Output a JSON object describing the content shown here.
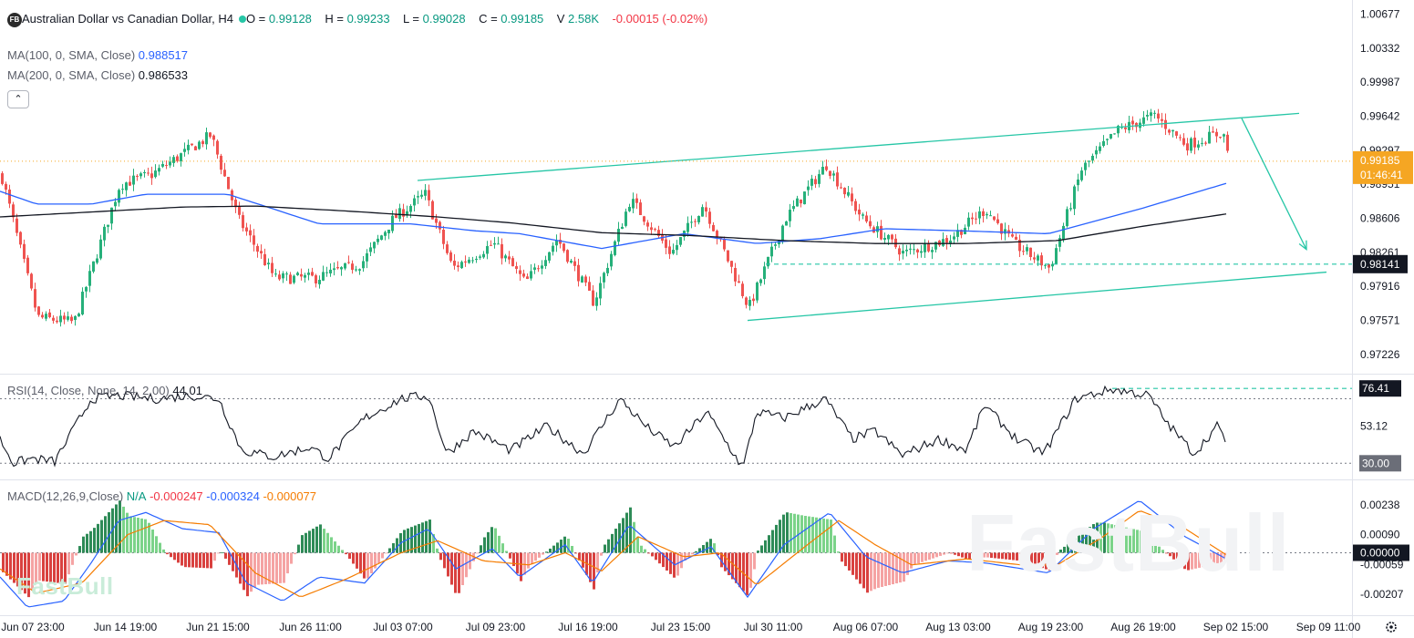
{
  "header": {
    "logo_text": "FB",
    "title": "Australian Dollar vs Canadian Dollar, H4",
    "open_label": "O =",
    "open": "0.99128",
    "high_label": "H =",
    "high": "0.99233",
    "low_label": "L =",
    "low": "0.99028",
    "close_label": "C =",
    "close": "0.99185",
    "volume_label": "V",
    "volume": "2.58K",
    "change": "-0.00015 (-0.02%)"
  },
  "indicators": {
    "ma100_label": "MA(100, 0, SMA, Close)",
    "ma100_value": "0.988517",
    "ma200_label": "MA(200, 0, SMA, Close)",
    "ma200_value": "0.986533",
    "collapse_icon": "chevron-up-icon",
    "rsi_label": "RSI(14, Close, None, 14, 2.00)",
    "rsi_value": "44.01",
    "macd_label": "MACD(12,26,9,Close)",
    "macd_na": "N/A",
    "macd_hist": "-0.000247",
    "macd_line": "-0.000324",
    "macd_signal": "-0.000077"
  },
  "watermark": {
    "text": "FastBull"
  },
  "chart_data": {
    "type": "candlestick",
    "price_axis": {
      "ticks": [
        "1.00677",
        "1.00332",
        "0.99987",
        "0.99642",
        "0.99297",
        "0.98951",
        "0.98606",
        "0.98261",
        "0.97916",
        "0.97571",
        "0.97226"
      ],
      "ylim": [
        0.9703,
        1.0082
      ]
    },
    "rsi_axis": {
      "ticks": [
        "53.12",
        "30.00"
      ],
      "ylim": [
        20,
        85
      ]
    },
    "macd_axis": {
      "ticks": [
        "0.00238",
        "0.00090",
        "-0.00059",
        "-0.00207"
      ],
      "ylim": [
        -0.0031,
        0.0036
      ]
    },
    "time_axis": {
      "labels": [
        "Jun 07 23:00",
        "Jun 14 19:00",
        "Jun 21 15:00",
        "Jun 26 11:00",
        "Jul 03 07:00",
        "Jul 09 23:00",
        "Jul 16 19:00",
        "Jul 23 15:00",
        "Jul 30 11:00",
        "Aug 06 07:00",
        "Aug 13 03:00",
        "Aug 19 23:00",
        "Aug 26 19:00",
        "Sep 02 15:00",
        "Sep 09 11:00"
      ]
    },
    "price_tags": [
      {
        "value": "0.99185",
        "sub": "01:46:41",
        "color": "#f5a623"
      },
      {
        "value": "0.98141",
        "color": "#131722"
      }
    ],
    "rsi_tags": [
      {
        "value": "76.41",
        "color": "#131722"
      },
      {
        "value": "30.00",
        "color": "#5d606b"
      }
    ],
    "macd_tags": [
      {
        "value": "0.00000",
        "color": "#131722"
      }
    ],
    "key_points": [
      [
        0,
        0.9905
      ],
      [
        40,
        0.976
      ],
      [
        80,
        0.9755
      ],
      [
        130,
        0.9895
      ],
      [
        165,
        0.9905
      ],
      [
        230,
        0.9945
      ],
      [
        260,
        0.986
      ],
      [
        300,
        0.98
      ],
      [
        345,
        0.98
      ],
      [
        395,
        0.9815
      ],
      [
        430,
        0.986
      ],
      [
        465,
        0.9885
      ],
      [
        495,
        0.981
      ],
      [
        540,
        0.9835
      ],
      [
        575,
        0.9795
      ],
      [
        610,
        0.984
      ],
      [
        650,
        0.9775
      ],
      [
        690,
        0.988
      ],
      [
        735,
        0.9825
      ],
      [
        770,
        0.9875
      ],
      [
        820,
        0.977
      ],
      [
        860,
        0.986
      ],
      [
        905,
        0.9915
      ],
      [
        945,
        0.986
      ],
      [
        990,
        0.9825
      ],
      [
        1040,
        0.984
      ],
      [
        1080,
        0.987
      ],
      [
        1110,
        0.9835
      ],
      [
        1150,
        0.981
      ],
      [
        1185,
        0.991
      ],
      [
        1225,
        0.995
      ],
      [
        1265,
        0.9965
      ],
      [
        1300,
        0.9935
      ],
      [
        1340,
        0.9948
      ],
      [
        1348,
        0.99185
      ]
    ],
    "ma100_points": [
      [
        0,
        0.9888
      ],
      [
        40,
        0.9875
      ],
      [
        100,
        0.9875
      ],
      [
        160,
        0.9885
      ],
      [
        250,
        0.9885
      ],
      [
        350,
        0.9855
      ],
      [
        450,
        0.9855
      ],
      [
        520,
        0.9848
      ],
      [
        570,
        0.9845
      ],
      [
        660,
        0.983
      ],
      [
        750,
        0.9845
      ],
      [
        830,
        0.9835
      ],
      [
        900,
        0.984
      ],
      [
        970,
        0.985
      ],
      [
        1050,
        0.9848
      ],
      [
        1150,
        0.9845
      ],
      [
        1250,
        0.987
      ],
      [
        1345,
        0.9896
      ]
    ],
    "ma200_points": [
      [
        0,
        0.9862
      ],
      [
        100,
        0.9867
      ],
      [
        200,
        0.9872
      ],
      [
        280,
        0.9873
      ],
      [
        380,
        0.9868
      ],
      [
        480,
        0.9862
      ],
      [
        560,
        0.9856
      ],
      [
        660,
        0.9846
      ],
      [
        760,
        0.9843
      ],
      [
        860,
        0.9838
      ],
      [
        960,
        0.9835
      ],
      [
        1060,
        0.9835
      ],
      [
        1160,
        0.9838
      ],
      [
        1250,
        0.9852
      ],
      [
        1345,
        0.9865
      ]
    ],
    "trend_channel": {
      "upper": [
        [
          458,
          0.9899
        ],
        [
          1425,
          0.9967
        ]
      ],
      "lower": [
        [
          820,
          0.9757
        ],
        [
          1455,
          0.9806
        ]
      ]
    },
    "forecast_arrow": [
      [
        1362,
        0.9962
      ],
      [
        1433,
        0.9829
      ]
    ],
    "support_level": 0.98141,
    "rsi_points": [
      [
        0,
        45
      ],
      [
        15,
        30
      ],
      [
        35,
        33
      ],
      [
        60,
        31
      ],
      [
        100,
        70
      ],
      [
        130,
        72
      ],
      [
        170,
        70
      ],
      [
        210,
        72
      ],
      [
        240,
        70
      ],
      [
        265,
        38
      ],
      [
        300,
        34
      ],
      [
        340,
        40
      ],
      [
        360,
        33
      ],
      [
        400,
        58
      ],
      [
        440,
        70
      ],
      [
        470,
        72
      ],
      [
        490,
        36
      ],
      [
        520,
        50
      ],
      [
        560,
        38
      ],
      [
        600,
        53
      ],
      [
        640,
        36
      ],
      [
        680,
        70
      ],
      [
        710,
        52
      ],
      [
        740,
        40
      ],
      [
        775,
        62
      ],
      [
        800,
        40
      ],
      [
        815,
        27
      ],
      [
        830,
        62
      ],
      [
        860,
        58
      ],
      [
        905,
        70
      ],
      [
        935,
        45
      ],
      [
        960,
        50
      ],
      [
        990,
        35
      ],
      [
        1030,
        45
      ],
      [
        1060,
        38
      ],
      [
        1080,
        66
      ],
      [
        1115,
        45
      ],
      [
        1145,
        36
      ],
      [
        1180,
        70
      ],
      [
        1220,
        76
      ],
      [
        1260,
        72
      ],
      [
        1280,
        55
      ],
      [
        1310,
        36
      ],
      [
        1335,
        53
      ],
      [
        1345,
        44
      ]
    ],
    "macd_points": [
      [
        0,
        -0.0012
      ],
      [
        30,
        -0.0027
      ],
      [
        70,
        -0.0024
      ],
      [
        100,
        -0.0005
      ],
      [
        130,
        0.0016
      ],
      [
        160,
        0.002
      ],
      [
        200,
        0.0012
      ],
      [
        240,
        0.001
      ],
      [
        270,
        -0.0015
      ],
      [
        310,
        -0.0024
      ],
      [
        350,
        -0.0012
      ],
      [
        400,
        -0.0015
      ],
      [
        440,
        0.0005
      ],
      [
        470,
        0.0012
      ],
      [
        500,
        -0.0008
      ],
      [
        540,
        0.0002
      ],
      [
        570,
        -0.0012
      ],
      [
        620,
        0.0004
      ],
      [
        650,
        -0.0015
      ],
      [
        690,
        0.0014
      ],
      [
        740,
        -0.0006
      ],
      [
        780,
        0.0003
      ],
      [
        820,
        -0.0022
      ],
      [
        860,
        0.0004
      ],
      [
        910,
        0.002
      ],
      [
        950,
        -0.0002
      ],
      [
        990,
        -0.001
      ],
      [
        1040,
        -0.0004
      ],
      [
        1080,
        -0.0005
      ],
      [
        1150,
        -0.001
      ],
      [
        1200,
        0.0012
      ],
      [
        1250,
        0.0026
      ],
      [
        1300,
        0.0008
      ],
      [
        1345,
        -0.0003
      ]
    ],
    "macd_signal_points": [
      [
        0,
        -0.0008
      ],
      [
        40,
        -0.002
      ],
      [
        90,
        -0.0015
      ],
      [
        140,
        0.0009
      ],
      [
        180,
        0.0016
      ],
      [
        230,
        0.0014
      ],
      [
        280,
        -0.001
      ],
      [
        330,
        -0.0022
      ],
      [
        380,
        -0.0013
      ],
      [
        440,
        0.0
      ],
      [
        480,
        0.0006
      ],
      [
        530,
        -0.0004
      ],
      [
        580,
        -0.0006
      ],
      [
        620,
        0.0
      ],
      [
        660,
        -0.0009
      ],
      [
        700,
        0.0008
      ],
      [
        750,
        -0.0002
      ],
      [
        790,
        0.0
      ],
      [
        830,
        -0.0016
      ],
      [
        880,
        0.0002
      ],
      [
        920,
        0.0016
      ],
      [
        960,
        0.0004
      ],
      [
        1000,
        -0.0006
      ],
      [
        1060,
        -0.0003
      ],
      [
        1120,
        -0.0006
      ],
      [
        1160,
        -0.0006
      ],
      [
        1210,
        0.0008
      ],
      [
        1250,
        0.0021
      ],
      [
        1300,
        0.0012
      ],
      [
        1345,
        -0.0001
      ]
    ]
  }
}
